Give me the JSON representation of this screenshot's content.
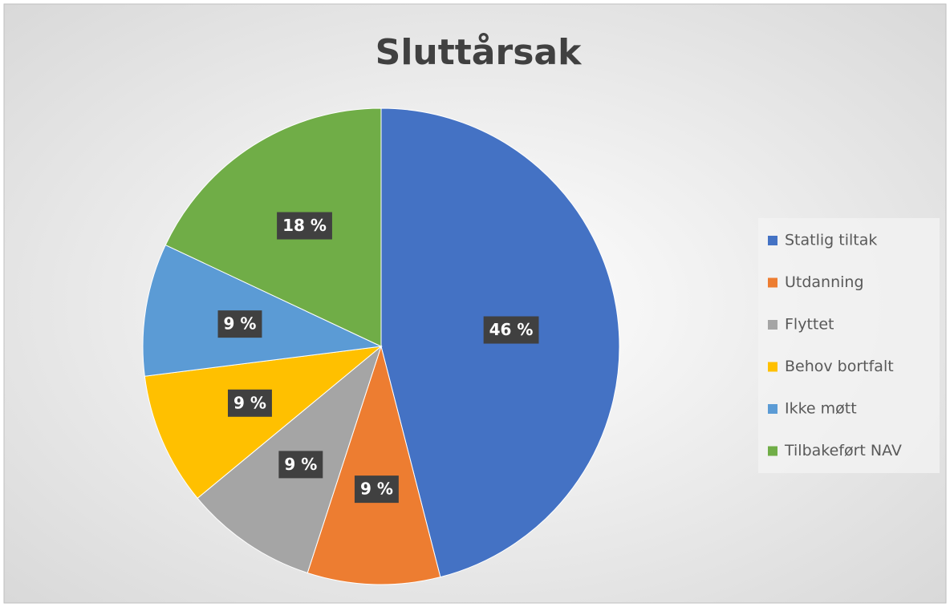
{
  "chart_data": {
    "type": "pie",
    "title": "Sluttårsak",
    "categories": [
      "Statlig tiltak",
      "Utdanning",
      "Flyttet",
      "Behov bortfalt",
      "Ikke møtt",
      "Tilbakeført NAV"
    ],
    "values": [
      46,
      9,
      9,
      9,
      9,
      18
    ],
    "value_labels": [
      "46 %",
      "9 %",
      "9 %",
      "9 %",
      "9 %",
      "18 %"
    ],
    "colors": [
      "#4472c4",
      "#ed7d31",
      "#a5a5a5",
      "#ffc000",
      "#5b9bd5",
      "#70ad47"
    ],
    "legend": "right"
  }
}
